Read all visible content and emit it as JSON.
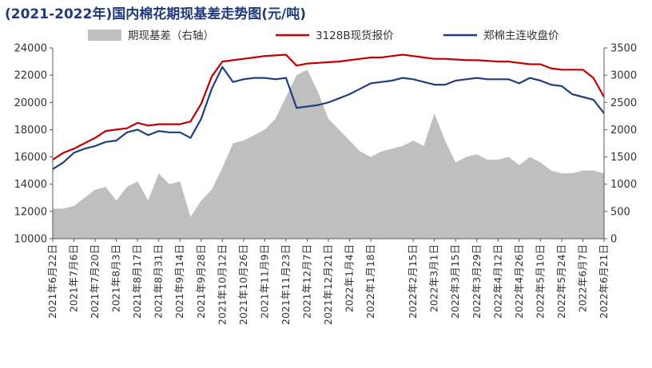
{
  "chart_data": {
    "type": "line",
    "title": "(2021-2022年)国内棉花期现基差走势图(元/吨)",
    "legend_position": "top",
    "ylim_left": [
      10000,
      24000
    ],
    "yticks_left": [
      10000,
      12000,
      14000,
      16000,
      18000,
      20000,
      22000,
      24000
    ],
    "ylim_right": [
      0,
      3500
    ],
    "yticks_right": [
      0,
      500,
      1000,
      1500,
      2000,
      2500,
      3000,
      3500
    ],
    "grid": false,
    "x": [
      "2021年6月22日",
      "2021年6月29日",
      "2021年7月6日",
      "2021年7月13日",
      "2021年7月20日",
      "2021年7月27日",
      "2021年8月3日",
      "2021年8月10日",
      "2021年8月17日",
      "2021年8月24日",
      "2021年8月31日",
      "2021年9月7日",
      "2021年9月14日",
      "2021年9月21日",
      "2021年9月28日",
      "2021年10月5日",
      "2021年10月12日",
      "2021年10月19日",
      "2021年10月26日",
      "2021年11月2日",
      "2021年11月9日",
      "2021年11月16日",
      "2021年11月23日",
      "2021年11月30日",
      "2021年12月7日",
      "2021年12月14日",
      "2021年12月21日",
      "2021年12月28日",
      "2022年1月4日",
      "2022年1月11日",
      "2022年1月18日",
      "2022年1月25日",
      "2022年2月1日",
      "2022年2月8日",
      "2022年2月15日",
      "2022年2月22日",
      "2022年3月1日",
      "2022年3月8日",
      "2022年3月15日",
      "2022年3月22日",
      "2022年3月29日",
      "2022年4月5日",
      "2022年4月12日",
      "2022年4月19日",
      "2022年4月26日",
      "2022年5月3日",
      "2022年5月10日",
      "2022年5月17日",
      "2022年5月24日",
      "2022年5月31日",
      "2022年6月7日",
      "2022年6月14日",
      "2022年6月21日"
    ],
    "xtick_labels": [
      "2021年6月22日",
      "2021年7月6日",
      "2021年7月20日",
      "2021年8月3日",
      "2021年8月17日",
      "2021年8月31日",
      "2021年9月14日",
      "2021年9月28日",
      "2021年10月12日",
      "2021年10月26日",
      "2021年11月9日",
      "2021年11月23日",
      "2021年12月7日",
      "2021年12月21日",
      "2022年1月4日",
      "2022年1月18日",
      "2022年2月15日",
      "2022年3月1日",
      "2022年3月15日",
      "2022年3月29日",
      "2022年4月12日",
      "2022年4月26日",
      "2022年5月10日",
      "2022年5月24日",
      "2022年6月7日",
      "2022年6月21日"
    ],
    "series": [
      {
        "name": "期现基差（右轴）",
        "axis": "right",
        "render": "area",
        "color": "#bfbfbf",
        "values": [
          550,
          550,
          600,
          750,
          900,
          950,
          700,
          950,
          1050,
          700,
          1200,
          1000,
          1050,
          400,
          700,
          900,
          1300,
          1750,
          1800,
          1900,
          2000,
          2200,
          2600,
          3000,
          3100,
          2700,
          2200,
          2000,
          1800,
          1600,
          1500,
          1600,
          1650,
          1700,
          1800,
          1700,
          2300,
          1800,
          1400,
          1500,
          1550,
          1450,
          1450,
          1500,
          1350,
          1500,
          1400,
          1250,
          1200,
          1200,
          1250,
          1250,
          1200
        ]
      },
      {
        "name": "3128B现货报价",
        "axis": "left",
        "render": "line",
        "color": "#c00000",
        "values": [
          15800,
          16300,
          16600,
          17000,
          17400,
          17900,
          18000,
          18100,
          18500,
          18300,
          18400,
          18400,
          18400,
          18600,
          19900,
          21900,
          23000,
          23100,
          23200,
          23300,
          23400,
          23450,
          23500,
          22700,
          22850,
          22900,
          22950,
          23000,
          23100,
          23200,
          23300,
          23300,
          23400,
          23500,
          23400,
          23300,
          23200,
          23200,
          23150,
          23100,
          23100,
          23050,
          23000,
          23000,
          22900,
          22800,
          22800,
          22500,
          22400,
          22400,
          22400,
          21800,
          20400
        ]
      },
      {
        "name": "郑棉主连收盘价",
        "axis": "left",
        "render": "line",
        "color": "#1f3f7f",
        "values": [
          15100,
          15600,
          16300,
          16600,
          16800,
          17100,
          17200,
          17800,
          18000,
          17600,
          17900,
          17800,
          17800,
          17400,
          18800,
          21000,
          22600,
          21500,
          21700,
          21800,
          21800,
          21700,
          21800,
          19600,
          19700,
          19800,
          20000,
          20300,
          20600,
          21000,
          21400,
          21500,
          21600,
          21800,
          21700,
          21500,
          21300,
          21300,
          21600,
          21700,
          21800,
          21700,
          21700,
          21700,
          21400,
          21800,
          21600,
          21300,
          21200,
          20600,
          20400,
          20200,
          19200
        ]
      }
    ]
  }
}
